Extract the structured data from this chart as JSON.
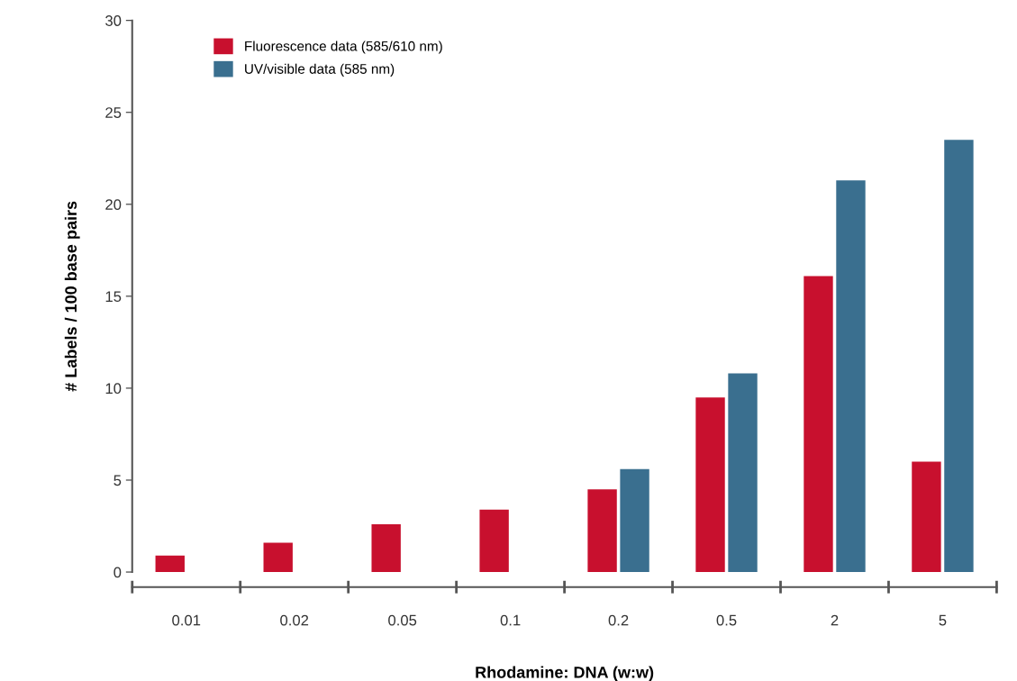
{
  "chart_data": {
    "type": "bar",
    "xlabel": "Rhodamine: DNA (w:w)",
    "ylabel": "# Labels / 100 base pairs",
    "categories": [
      "0.01",
      "0.02",
      "0.05",
      "0.1",
      "0.2",
      "0.5",
      "2",
      "5"
    ],
    "series": [
      {
        "name": "Fluorescence data (585/610 nm)",
        "color": "#c8102e",
        "values": [
          0.9,
          1.6,
          2.6,
          3.4,
          4.5,
          9.5,
          16.1,
          6.0
        ]
      },
      {
        "name": "UV/visible data (585 nm)",
        "color": "#3a6f8f",
        "values": [
          null,
          null,
          null,
          null,
          5.6,
          10.8,
          21.3,
          23.5
        ]
      }
    ],
    "ylim": [
      0,
      30
    ],
    "yticks": [
      0,
      5,
      10,
      15,
      20,
      25,
      30
    ],
    "grid": false,
    "legend": "top left"
  }
}
